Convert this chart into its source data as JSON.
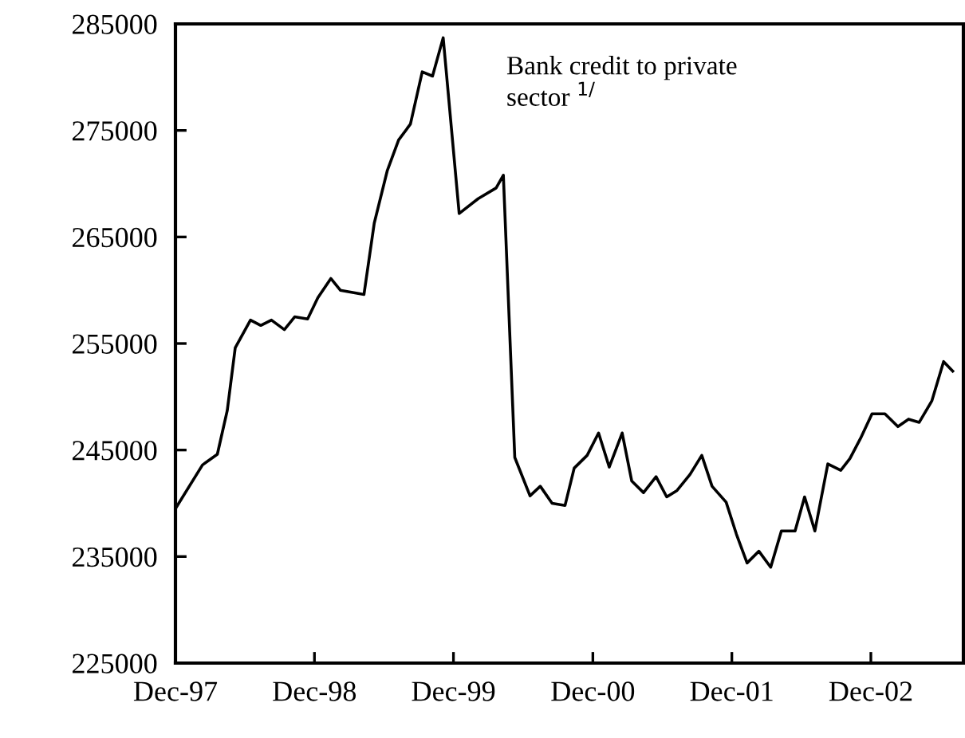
{
  "chart_data": {
    "type": "line",
    "annotations": [
      "Bank credit to private\nsector $^{1/}$"
    ],
    "x": [
      "1997-12-01",
      "1998-02-10",
      "1998-03-21",
      "1998-04-16",
      "1998-05-07",
      "1998-06-16",
      "1998-07-13",
      "1998-08-10",
      "1998-09-13",
      "1998-10-10",
      "1998-11-13",
      "1998-12-10",
      "1999-01-13",
      "1999-02-07",
      "1999-04-10",
      "1999-05-07",
      "1999-06-10",
      "1999-07-10",
      "1999-08-10",
      "1999-09-10",
      "1999-10-07",
      "1999-11-04",
      "1999-12-16",
      "2000-02-04",
      "2000-03-22",
      "2000-04-10",
      "2000-05-10",
      "2000-06-19",
      "2000-07-16",
      "2000-08-16",
      "2000-09-19",
      "2000-10-13",
      "2000-11-16",
      "2000-12-16",
      "2001-01-13",
      "2001-02-16",
      "2001-03-13",
      "2001-04-13",
      "2001-05-16",
      "2001-06-13",
      "2001-07-10",
      "2001-08-13",
      "2001-09-13",
      "2001-10-10",
      "2001-11-16",
      "2001-12-13",
      "2002-01-10",
      "2002-02-10",
      "2002-03-13",
      "2002-04-10",
      "2002-05-16",
      "2002-06-10",
      "2002-07-07",
      "2002-08-10",
      "2002-09-13",
      "2002-10-07",
      "2002-11-04",
      "2002-12-04",
      "2003-01-07",
      "2003-02-10",
      "2003-03-10",
      "2003-04-07",
      "2003-05-10",
      "2003-06-10",
      "2003-07-04"
    ],
    "series": [
      {
        "color": "#000000",
        "values": [
          239500,
          243600,
          244600,
          248700,
          254600,
          257200,
          256700,
          257200,
          256300,
          257500,
          257300,
          259300,
          261100,
          260000,
          259600,
          266300,
          271200,
          274100,
          275600,
          280500,
          280100,
          283700,
          267200,
          268600,
          269600,
          270800,
          244300,
          240700,
          241600,
          240000,
          239800,
          243300,
          244500,
          246600,
          243400,
          246600,
          242100,
          241000,
          242500,
          240600,
          241200,
          242700,
          244500,
          241600,
          240100,
          237100,
          234400,
          235500,
          234000,
          237400,
          237400,
          240600,
          237400,
          243700,
          243100,
          244200,
          246100,
          248400,
          248400,
          247200,
          247900,
          247600,
          249600,
          253300,
          252400
        ]
      }
    ],
    "xlim": [
      "1997-12-01",
      "2003-08-01"
    ],
    "xticks": [
      {
        "value": "1997-12-01",
        "label": "Dec-97"
      },
      {
        "value": "1998-12-01",
        "label": "Dec-98"
      },
      {
        "value": "1999-12-01",
        "label": "Dec-99"
      },
      {
        "value": "2000-12-01",
        "label": "Dec-00"
      },
      {
        "value": "2001-12-01",
        "label": "Dec-01"
      },
      {
        "value": "2002-12-01",
        "label": "Dec-02"
      }
    ],
    "ylim": [
      225000,
      285000
    ],
    "yticks": [
      225000,
      235000,
      245000,
      255000,
      265000,
      275000,
      285000
    ],
    "grid": false,
    "legend": false,
    "marker": "none",
    "line_style": "solid"
  }
}
